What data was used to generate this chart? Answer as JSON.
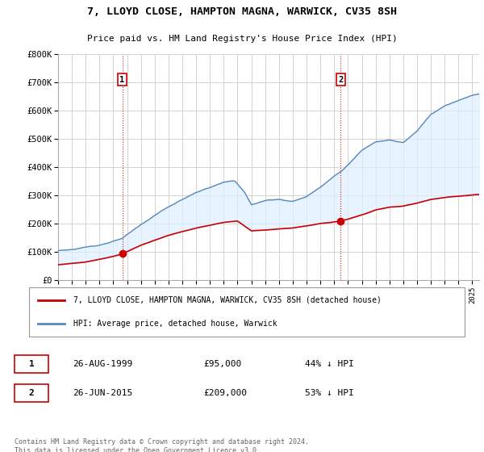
{
  "title": "7, LLOYD CLOSE, HAMPTON MAGNA, WARWICK, CV35 8SH",
  "subtitle": "Price paid vs. HM Land Registry's House Price Index (HPI)",
  "legend_line1": "7, LLOYD CLOSE, HAMPTON MAGNA, WARWICK, CV35 8SH (detached house)",
  "legend_line2": "HPI: Average price, detached house, Warwick",
  "footnote": "Contains HM Land Registry data © Crown copyright and database right 2024.\nThis data is licensed under the Open Government Licence v3.0.",
  "sale1_date": "26-AUG-1999",
  "sale1_price": 95000,
  "sale1_hpi": "44% ↓ HPI",
  "sale2_date": "26-JUN-2015",
  "sale2_price": 209000,
  "sale2_hpi": "53% ↓ HPI",
  "red_color": "#cc0000",
  "blue_color": "#5588bb",
  "fill_color": "#ddeeff",
  "background_color": "#ffffff",
  "grid_color": "#cccccc",
  "ylim": [
    0,
    800000
  ],
  "yticks": [
    0,
    100000,
    200000,
    300000,
    400000,
    500000,
    600000,
    700000,
    800000
  ],
  "xlim_start": 1995.0,
  "xlim_end": 2025.5,
  "sale1_x": 1999.646,
  "sale1_y": 95000,
  "sale2_x": 2015.479,
  "sale2_y": 209000
}
